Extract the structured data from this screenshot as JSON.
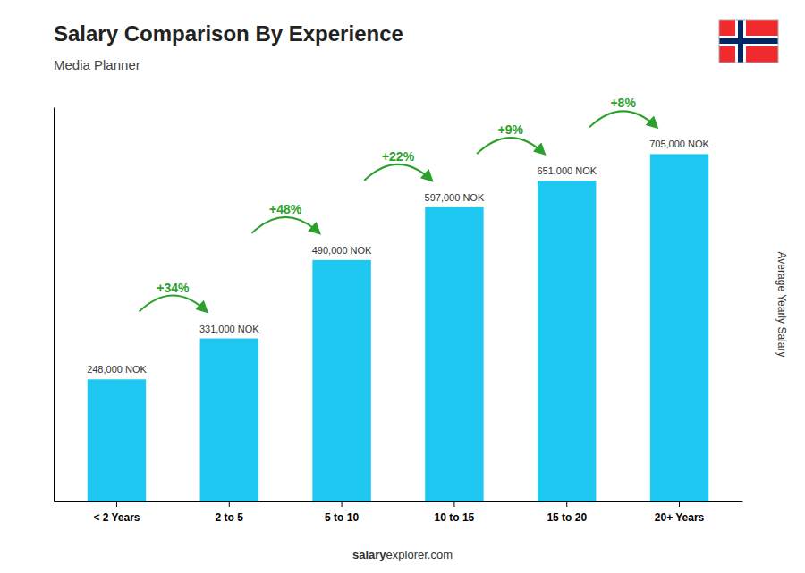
{
  "chart_data": {
    "type": "bar",
    "title": "Salary Comparison By Experience",
    "subtitle": "Media Planner",
    "ylabel": "Average Yearly Salary",
    "categories": [
      "< 2 Years",
      "2 to 5",
      "5 to 10",
      "10 to 15",
      "15 to 20",
      "20+ Years"
    ],
    "values": [
      248000,
      331000,
      490000,
      597000,
      651000,
      705000
    ],
    "value_labels": [
      "248,000 NOK",
      "331,000 NOK",
      "490,000 NOK",
      "597,000 NOK",
      "651,000 NOK",
      "705,000 NOK"
    ],
    "data_labels": true,
    "color": "#1ec8f0",
    "ylim": [
      0,
      800000
    ],
    "tick_labels": "x",
    "grid": false,
    "annotations": [
      {
        "text": "+34%",
        "from": "< 2 Years",
        "to": "2 to 5"
      },
      {
        "text": "+48%",
        "from": "2 to 5",
        "to": "5 to 10"
      },
      {
        "text": "+22%",
        "from": "5 to 10",
        "to": "10 to 15"
      },
      {
        "text": "+9%",
        "from": "10 to 15",
        "to": "15 to 20"
      },
      {
        "text": "+8%",
        "from": "15 to 20",
        "to": "20+ Years"
      }
    ],
    "footer": [
      "salary",
      "explorer.com"
    ]
  }
}
